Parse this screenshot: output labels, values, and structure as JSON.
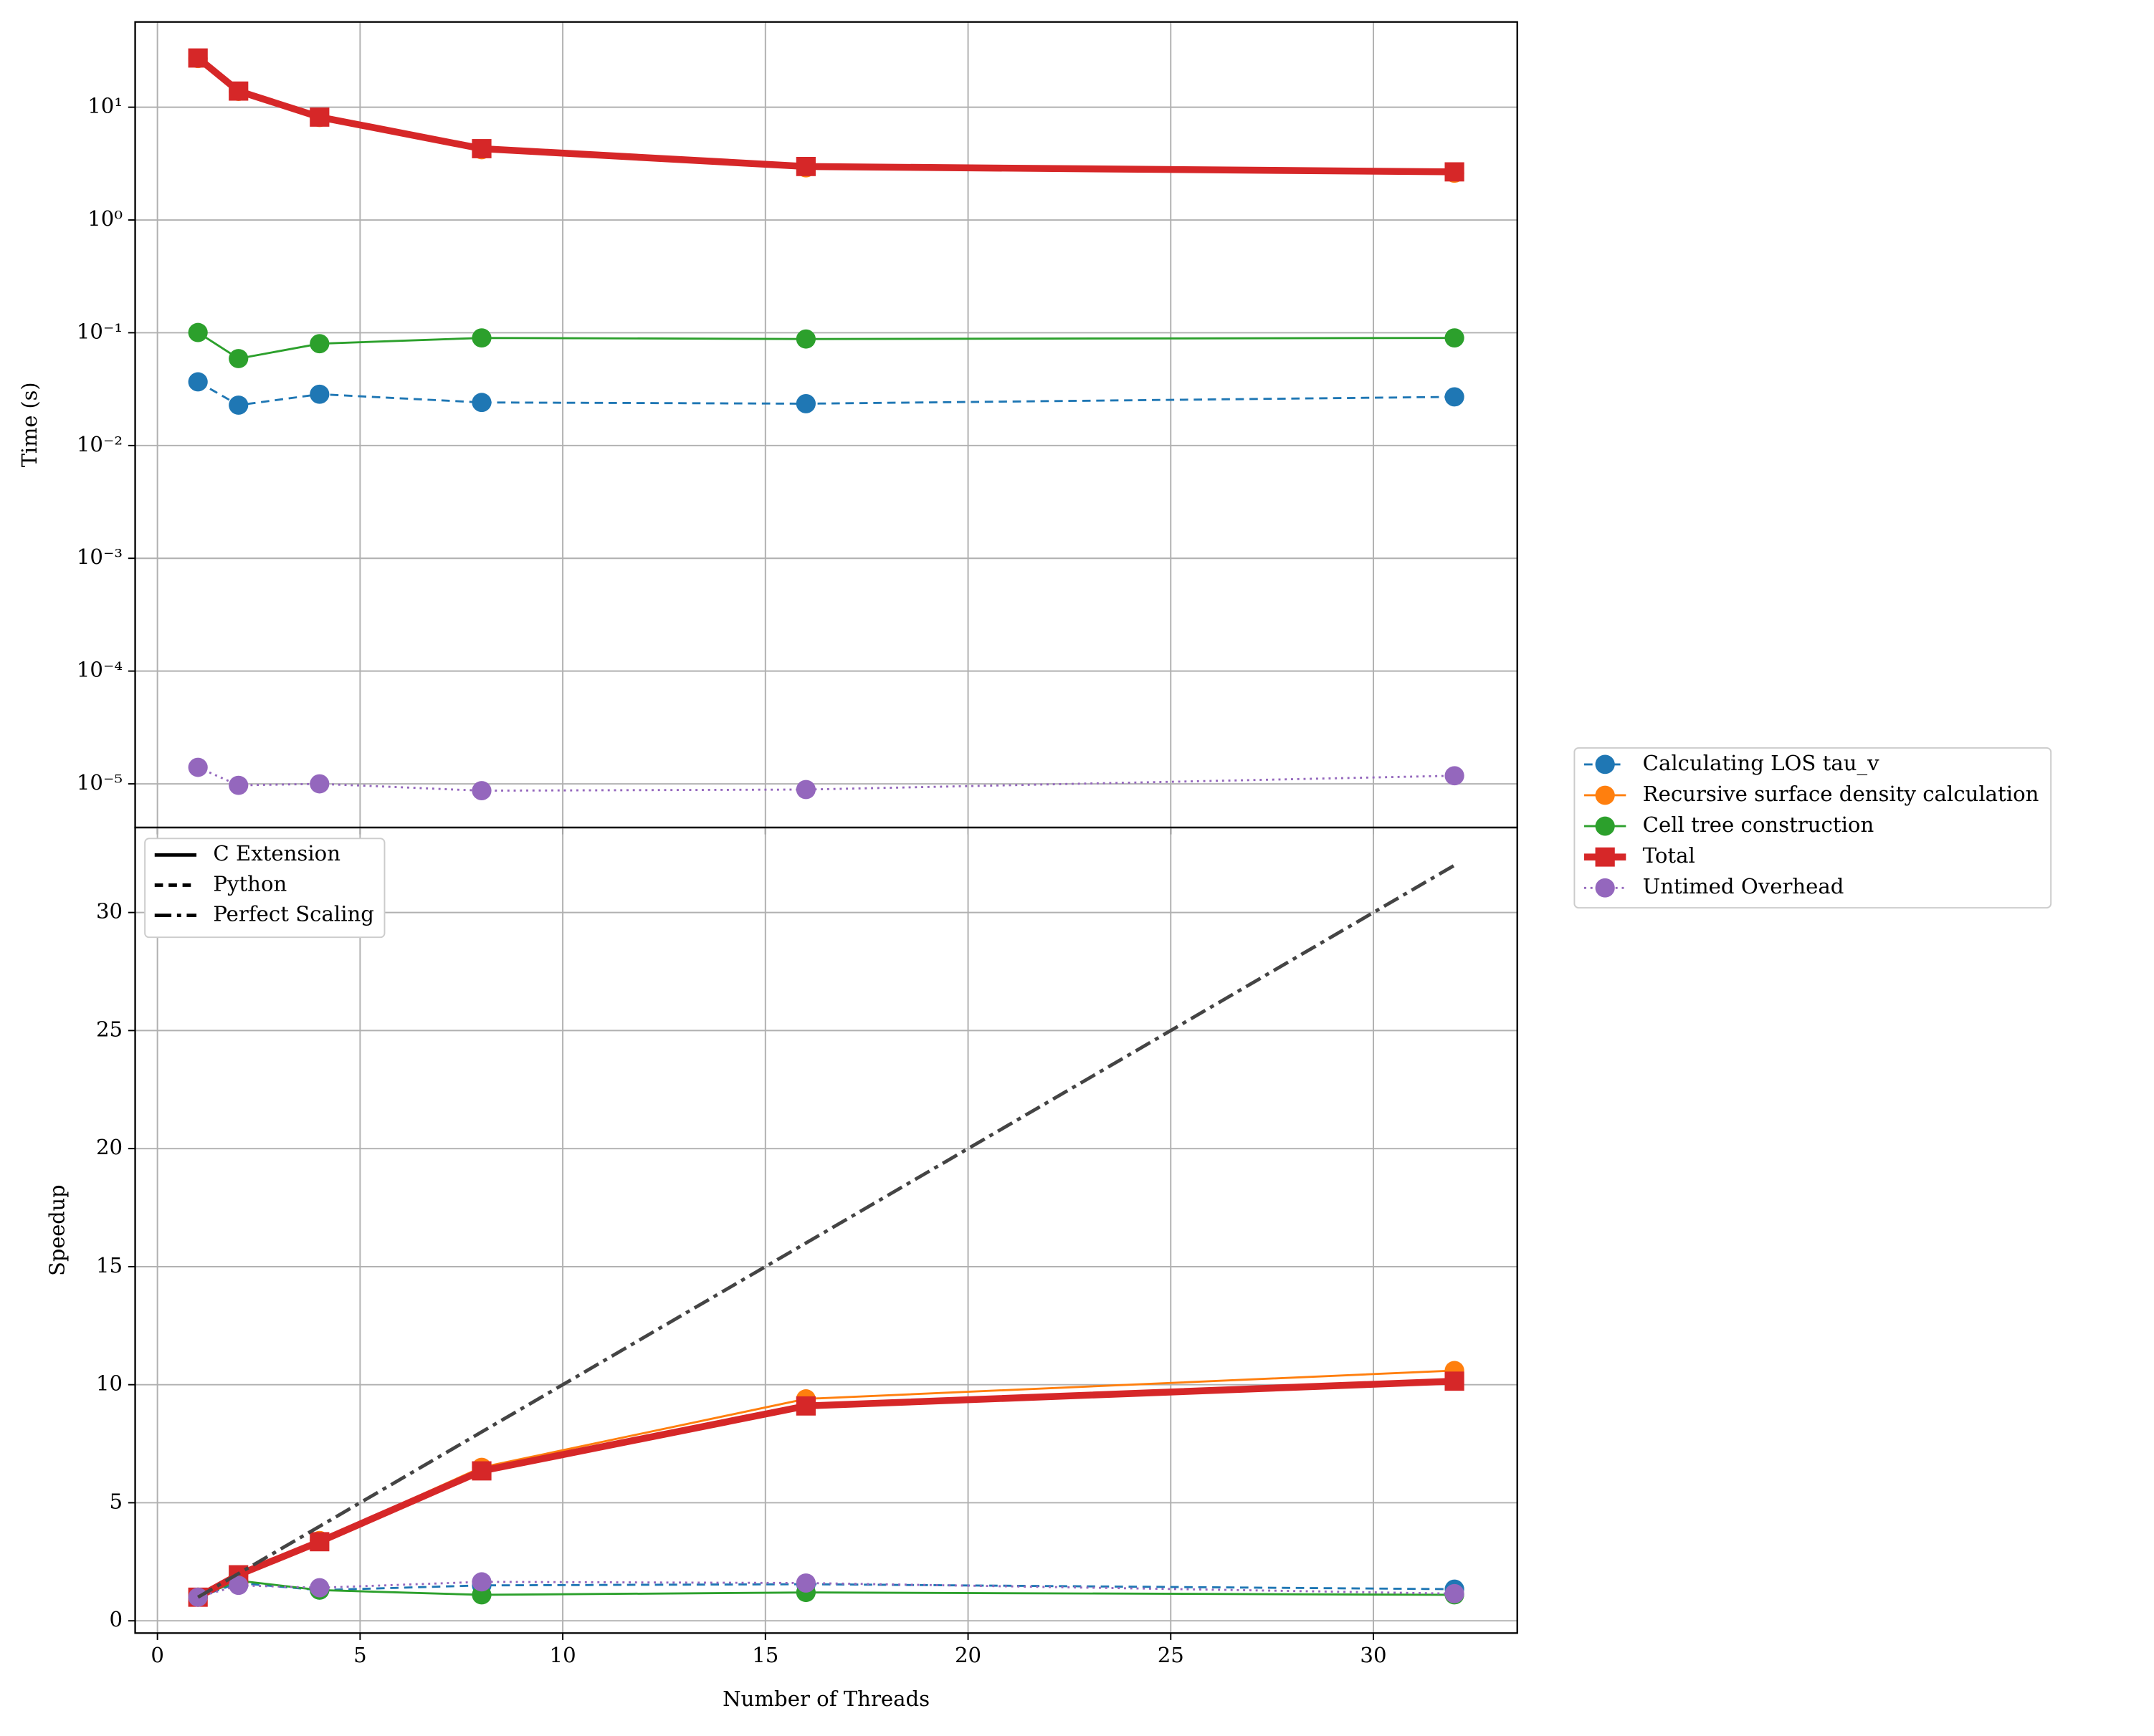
{
  "chart_data": [
    {
      "type": "line",
      "ylabel": "Time (s)",
      "yscale": "log",
      "grid": true,
      "legend": "outside right",
      "x": [
        1,
        2,
        4,
        8,
        16,
        32
      ],
      "xlim": [
        -0.55,
        33.55
      ],
      "xticks": [
        0,
        5,
        10,
        15,
        20,
        25,
        30
      ],
      "ylim": [
        4.1e-06,
        57
      ],
      "yticks": [
        {
          "value": 1e-05,
          "label": "10⁻⁵"
        },
        {
          "value": 0.0001,
          "label": "10⁻⁴"
        },
        {
          "value": 0.001,
          "label": "10⁻³"
        },
        {
          "value": 0.01,
          "label": "10⁻²"
        },
        {
          "value": 0.1,
          "label": "10⁻¹"
        },
        {
          "value": 1,
          "label": "10⁰"
        },
        {
          "value": 10,
          "label": "10¹"
        }
      ],
      "series": [
        {
          "name": "Calculating LOS tau_v",
          "color": "#1f77b4",
          "linestyle": "dashed",
          "marker": "circle",
          "linewidth": 1.5,
          "values": [
            0.0367,
            0.0228,
            0.0285,
            0.0241,
            0.0235,
            0.027
          ]
        },
        {
          "name": "Recursive surface density calculation",
          "color": "#ff7f0e",
          "linestyle": "solid",
          "marker": "circle",
          "linewidth": 1.5,
          "values": [
            27,
            13.8,
            8.1,
            4.2,
            2.9,
            2.6
          ]
        },
        {
          "name": "Cell tree construction",
          "color": "#2ca02c",
          "linestyle": "solid",
          "marker": "circle",
          "linewidth": 1.5,
          "values": [
            0.1005,
            0.059,
            0.08,
            0.09,
            0.088,
            0.09
          ]
        },
        {
          "name": "Total",
          "color": "#d62728",
          "linestyle": "solid",
          "marker": "square",
          "linewidth": 5,
          "values": [
            27.3,
            13.9,
            8.17,
            4.29,
            2.98,
            2.67
          ]
        },
        {
          "name": "Untimed Overhead",
          "color": "#9467bd",
          "linestyle": "dotted",
          "marker": "circle",
          "linewidth": 1.5,
          "values": [
            1.4e-05,
            9.7e-06,
            1e-05,
            8.7e-06,
            8.9e-06,
            1.18e-05
          ]
        }
      ]
    },
    {
      "type": "line",
      "ylabel": "Speedup",
      "xlabel": "Number of Threads",
      "grid": true,
      "legend": "upper left",
      "x": [
        1,
        2,
        4,
        8,
        16,
        32
      ],
      "xlim": [
        -0.55,
        33.55
      ],
      "xticks": [
        0,
        5,
        10,
        15,
        20,
        25,
        30
      ],
      "ylim": [
        -0.52,
        33.6
      ],
      "yticks": [
        0,
        5,
        10,
        15,
        20,
        25,
        30
      ],
      "legend_entries": [
        {
          "label": "C Extension",
          "linestyle": "solid"
        },
        {
          "label": "Python",
          "linestyle": "dashed"
        },
        {
          "label": "Perfect Scaling",
          "linestyle": "dashdot"
        }
      ],
      "series": [
        {
          "color": "#1f77b4",
          "linestyle": "dashed",
          "marker": "circle",
          "linewidth": 1.5,
          "values": [
            1,
            1.6,
            1.3,
            1.5,
            1.55,
            1.34
          ]
        },
        {
          "color": "#ff7f0e",
          "linestyle": "solid",
          "marker": "circle",
          "linewidth": 1.5,
          "values": [
            1,
            1.9,
            3.4,
            6.5,
            9.4,
            10.6
          ]
        },
        {
          "color": "#2ca02c",
          "linestyle": "solid",
          "marker": "circle",
          "linewidth": 1.5,
          "values": [
            1,
            1.7,
            1.3,
            1.1,
            1.2,
            1.1
          ]
        },
        {
          "color": "#d62728",
          "linestyle": "solid",
          "marker": "square",
          "linewidth": 5,
          "values": [
            1,
            1.95,
            3.35,
            6.35,
            9.1,
            10.15
          ]
        },
        {
          "color": "#9467bd",
          "linestyle": "dotted",
          "marker": "circle",
          "linewidth": 1.5,
          "values": [
            1,
            1.5,
            1.4,
            1.65,
            1.6,
            1.15
          ]
        },
        {
          "color": "#444444",
          "linestyle": "dashdot",
          "marker": "none",
          "linewidth": 2.5,
          "values": [
            1,
            2,
            4,
            8,
            16,
            32
          ]
        }
      ]
    }
  ]
}
